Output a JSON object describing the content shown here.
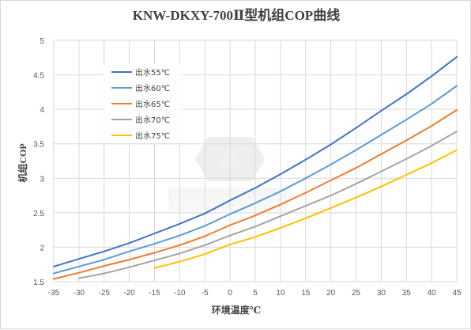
{
  "chart_data": {
    "type": "line",
    "title": "KNW-DKXY-700Ⅱ型机组COP曲线",
    "xlabel": "环境温度℃",
    "ylabel": "机组COP",
    "xlim": [
      -35,
      45
    ],
    "ylim": [
      1.5,
      5
    ],
    "x_ticks": [
      "-35",
      "-30",
      "-25",
      "-20",
      "-15",
      "-10",
      "-5",
      "0",
      "5",
      "10",
      "15",
      "20",
      "25",
      "30",
      "35",
      "40",
      "45"
    ],
    "y_ticks": [
      "1.5",
      "2",
      "2.5",
      "3",
      "3.5",
      "4",
      "4.5",
      "5"
    ],
    "grid": "vertical and horizontal",
    "legend_position": "upper-left inside plot",
    "series": [
      {
        "name": "出水55℃",
        "color": "#4472c4",
        "points": [
          [
            -35,
            1.72
          ],
          [
            -30,
            1.83
          ],
          [
            -25,
            1.94
          ],
          [
            -20,
            2.06
          ],
          [
            -15,
            2.2
          ],
          [
            -10,
            2.34
          ],
          [
            -5,
            2.49
          ],
          [
            0,
            2.68
          ],
          [
            5,
            2.86
          ],
          [
            10,
            3.06
          ],
          [
            15,
            3.27
          ],
          [
            20,
            3.49
          ],
          [
            25,
            3.73
          ],
          [
            30,
            3.98
          ],
          [
            35,
            4.22
          ],
          [
            40,
            4.48
          ],
          [
            45,
            4.76
          ]
        ]
      },
      {
        "name": "出水60℃",
        "color": "#5b9bd5",
        "points": [
          [
            -35,
            1.62
          ],
          [
            -30,
            1.72
          ],
          [
            -25,
            1.82
          ],
          [
            -20,
            1.94
          ],
          [
            -15,
            2.05
          ],
          [
            -10,
            2.17
          ],
          [
            -5,
            2.31
          ],
          [
            0,
            2.48
          ],
          [
            5,
            2.64
          ],
          [
            10,
            2.81
          ],
          [
            15,
            3.0
          ],
          [
            20,
            3.2
          ],
          [
            25,
            3.41
          ],
          [
            30,
            3.63
          ],
          [
            35,
            3.85
          ],
          [
            40,
            4.08
          ],
          [
            45,
            4.34
          ]
        ]
      },
      {
        "name": "出水65℃",
        "color": "#ed7d31",
        "points": [
          [
            -35,
            1.54
          ],
          [
            -30,
            1.63
          ],
          [
            -25,
            1.73
          ],
          [
            -20,
            1.82
          ],
          [
            -15,
            1.92
          ],
          [
            -10,
            2.03
          ],
          [
            -5,
            2.16
          ],
          [
            0,
            2.32
          ],
          [
            5,
            2.46
          ],
          [
            10,
            2.62
          ],
          [
            15,
            2.79
          ],
          [
            20,
            2.97
          ],
          [
            25,
            3.15
          ],
          [
            30,
            3.35
          ],
          [
            35,
            3.55
          ],
          [
            40,
            3.76
          ],
          [
            45,
            3.99
          ]
        ]
      },
      {
        "name": "出水70℃",
        "color": "#a5a5a5",
        "points": [
          [
            -30,
            1.55
          ],
          [
            -25,
            1.62
          ],
          [
            -20,
            1.71
          ],
          [
            -15,
            1.81
          ],
          [
            -10,
            1.91
          ],
          [
            -5,
            2.03
          ],
          [
            0,
            2.17
          ],
          [
            5,
            2.3
          ],
          [
            10,
            2.45
          ],
          [
            15,
            2.6
          ],
          [
            20,
            2.75
          ],
          [
            25,
            2.92
          ],
          [
            30,
            3.1
          ],
          [
            35,
            3.28
          ],
          [
            40,
            3.47
          ],
          [
            45,
            3.68
          ]
        ]
      },
      {
        "name": "出水75℃",
        "color": "#ffc000",
        "points": [
          [
            -15,
            1.7
          ],
          [
            -10,
            1.79
          ],
          [
            -5,
            1.9
          ],
          [
            0,
            2.04
          ],
          [
            5,
            2.15
          ],
          [
            10,
            2.28
          ],
          [
            15,
            2.42
          ],
          [
            20,
            2.57
          ],
          [
            25,
            2.72
          ],
          [
            30,
            2.88
          ],
          [
            35,
            3.05
          ],
          [
            40,
            3.22
          ],
          [
            45,
            3.41
          ]
        ]
      }
    ]
  }
}
